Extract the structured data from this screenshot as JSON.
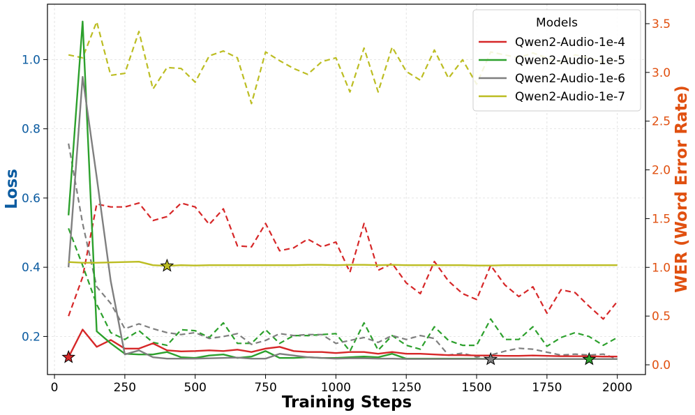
{
  "chart_data": {
    "type": "line",
    "xlabel": "Training Steps",
    "ylabel_left": "Loss",
    "ylabel_right": "WER (Word Error Rate)",
    "xlim": [
      -25,
      2100
    ],
    "ylim_left": [
      0.09,
      1.16
    ],
    "ylim_right": [
      -0.1,
      3.7
    ],
    "x_ticks": [
      0,
      250,
      500,
      750,
      1000,
      1250,
      1500,
      1750,
      2000
    ],
    "y_ticks_left": [
      0.2,
      0.4,
      0.6,
      0.8,
      1.0
    ],
    "y_ticks_right": [
      0.0,
      0.5,
      1.0,
      1.5,
      2.0,
      2.5,
      3.0,
      3.5
    ],
    "grid": true,
    "legend": {
      "title": "Models",
      "placement": "top-right"
    },
    "x": [
      50,
      100,
      150,
      200,
      250,
      300,
      350,
      400,
      450,
      500,
      550,
      600,
      650,
      700,
      750,
      800,
      850,
      900,
      950,
      1000,
      1050,
      1100,
      1150,
      1200,
      1250,
      1300,
      1350,
      1400,
      1450,
      1500,
      1550,
      1600,
      1650,
      1700,
      1750,
      1800,
      1850,
      1900,
      1950,
      2000
    ],
    "series": [
      {
        "name": "Qwen2-Audio-1e-4",
        "color": "#d62728",
        "loss": [
          0.14,
          0.22,
          0.17,
          0.19,
          0.165,
          0.165,
          0.18,
          0.16,
          0.157,
          0.158,
          0.16,
          0.158,
          0.162,
          0.155,
          0.165,
          0.17,
          0.158,
          0.155,
          0.155,
          0.152,
          0.155,
          0.155,
          0.15,
          0.155,
          0.15,
          0.15,
          0.148,
          0.146,
          0.146,
          0.145,
          0.145,
          0.144,
          0.144,
          0.145,
          0.144,
          0.143,
          0.143,
          0.143,
          0.142,
          0.142
        ],
        "wer": [
          0.5,
          0.9,
          1.65,
          1.62,
          1.62,
          1.66,
          1.48,
          1.52,
          1.66,
          1.62,
          1.44,
          1.6,
          1.22,
          1.21,
          1.45,
          1.17,
          1.2,
          1.29,
          1.21,
          1.26,
          0.95,
          1.45,
          0.97,
          1.04,
          0.84,
          0.73,
          1.06,
          0.86,
          0.73,
          0.67,
          1.02,
          0.82,
          0.7,
          0.8,
          0.53,
          0.77,
          0.74,
          0.6,
          0.47,
          0.65
        ]
      },
      {
        "name": "Qwen2-Audio-1e-5",
        "color": "#2ca02c",
        "loss": [
          0.55,
          1.11,
          0.215,
          0.18,
          0.15,
          0.148,
          0.148,
          0.155,
          0.14,
          0.138,
          0.145,
          0.148,
          0.138,
          0.142,
          0.158,
          0.138,
          0.138,
          0.14,
          0.138,
          0.138,
          0.14,
          0.142,
          0.14,
          0.15,
          0.136,
          0.136,
          0.136,
          0.136,
          0.136,
          0.136,
          0.135,
          0.135,
          0.135,
          0.135,
          0.135,
          0.135,
          0.135,
          0.135,
          0.135,
          0.135
        ],
        "wer": [
          1.4,
          1.02,
          0.62,
          0.33,
          0.26,
          0.35,
          0.23,
          0.2,
          0.36,
          0.35,
          0.28,
          0.43,
          0.22,
          0.22,
          0.36,
          0.22,
          0.3,
          0.3,
          0.31,
          0.32,
          0.14,
          0.43,
          0.15,
          0.3,
          0.2,
          0.16,
          0.39,
          0.25,
          0.2,
          0.2,
          0.47,
          0.26,
          0.26,
          0.39,
          0.19,
          0.28,
          0.33,
          0.29,
          0.2,
          0.28
        ]
      },
      {
        "name": "Qwen2-Audio-1e-6",
        "color": "#7f7f7f",
        "loss": [
          0.4,
          0.95,
          0.66,
          0.36,
          0.148,
          0.16,
          0.14,
          0.136,
          0.136,
          0.136,
          0.137,
          0.138,
          0.139,
          0.136,
          0.136,
          0.15,
          0.145,
          0.14,
          0.138,
          0.136,
          0.137,
          0.137,
          0.136,
          0.136,
          0.135,
          0.135,
          0.135,
          0.135,
          0.135,
          0.135,
          0.135,
          0.135,
          0.135,
          0.135,
          0.135,
          0.135,
          0.135,
          0.135,
          0.135,
          0.135
        ],
        "wer": [
          2.27,
          1.45,
          0.8,
          0.63,
          0.37,
          0.42,
          0.37,
          0.33,
          0.31,
          0.33,
          0.27,
          0.29,
          0.32,
          0.21,
          0.25,
          0.32,
          0.3,
          0.31,
          0.31,
          0.22,
          0.25,
          0.28,
          0.23,
          0.3,
          0.26,
          0.3,
          0.27,
          0.1,
          0.12,
          0.08,
          0.1,
          0.14,
          0.17,
          0.16,
          0.13,
          0.1,
          0.11,
          0.1,
          0.11,
          0.06
        ]
      },
      {
        "name": "Qwen2-Audio-1e-7",
        "color": "#bcbd22",
        "loss": [
          0.415,
          0.413,
          0.413,
          0.414,
          0.415,
          0.416,
          0.406,
          0.404,
          0.406,
          0.405,
          0.406,
          0.406,
          0.406,
          0.406,
          0.406,
          0.406,
          0.406,
          0.407,
          0.407,
          0.406,
          0.407,
          0.407,
          0.406,
          0.407,
          0.406,
          0.406,
          0.406,
          0.406,
          0.406,
          0.405,
          0.405,
          0.406,
          0.406,
          0.406,
          0.406,
          0.406,
          0.406,
          0.406,
          0.406,
          0.406
        ],
        "wer": [
          3.18,
          3.15,
          3.52,
          2.97,
          2.99,
          3.42,
          2.83,
          3.05,
          3.04,
          2.9,
          3.17,
          3.22,
          3.15,
          2.68,
          3.21,
          3.12,
          3.04,
          2.98,
          3.11,
          3.15,
          2.8,
          3.25,
          2.8,
          3.26,
          3.01,
          2.92,
          3.23,
          2.94,
          3.13,
          2.88,
          3.21,
          3.18,
          3.15,
          3.2,
          3.15,
          3.1,
          3.18,
          3.15,
          3.1,
          3.15
        ]
      }
    ],
    "markers": [
      {
        "series": "Qwen2-Audio-1e-4",
        "x": 50,
        "loss": 0.14
      },
      {
        "series": "Qwen2-Audio-1e-7",
        "x": 400,
        "loss": 0.404
      },
      {
        "series": "Qwen2-Audio-1e-6",
        "x": 1550,
        "loss": 0.134
      },
      {
        "series": "Qwen2-Audio-1e-5",
        "x": 1900,
        "loss": 0.134
      }
    ],
    "colors": {
      "left_axis": "#0b5ba0",
      "right_axis": "#e05010"
    }
  }
}
